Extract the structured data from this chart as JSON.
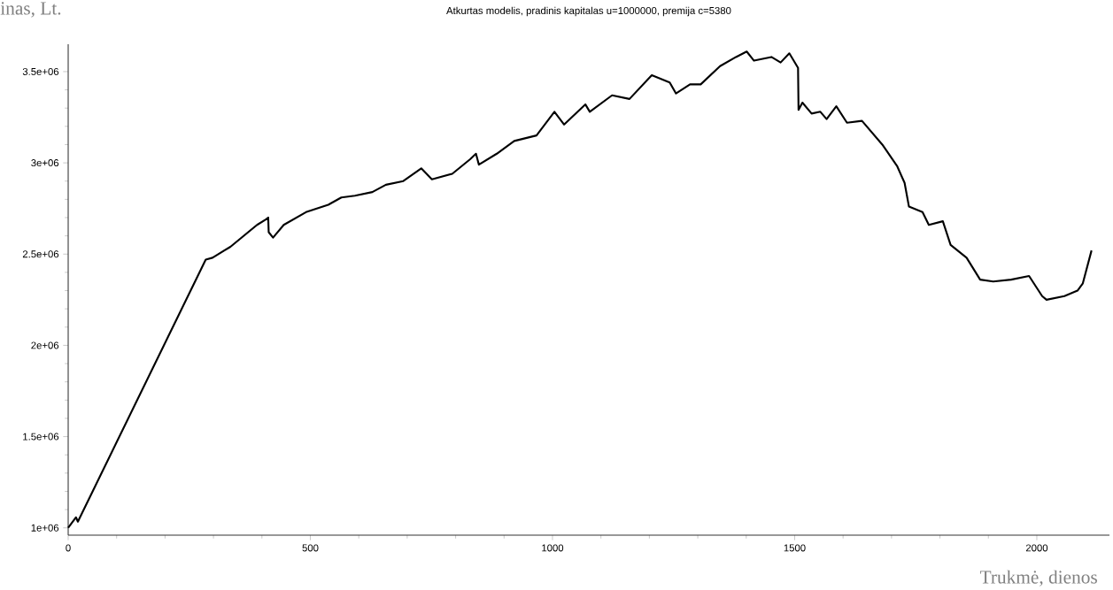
{
  "chart_data": {
    "type": "line",
    "title": "Atkurtas modelis, pradinis kapitalas u=1000000, premija c=5380",
    "xlabel": "Trukmė, dienos",
    "ylabel": "inas, Lt.",
    "xlim": [
      0,
      2150
    ],
    "ylim": [
      960000,
      3650000
    ],
    "xticks": [
      0,
      500,
      1000,
      1500,
      2000
    ],
    "yticks": [
      {
        "value": 1000000,
        "label": "1e+06"
      },
      {
        "value": 1500000,
        "label": "1.5e+06"
      },
      {
        "value": 2000000,
        "label": "2e+06"
      },
      {
        "value": 2500000,
        "label": "2.5e+06"
      },
      {
        "value": 3000000,
        "label": "3e+06"
      },
      {
        "value": 3500000,
        "label": "3.5e+06"
      }
    ],
    "line_style": "solid",
    "series": [
      {
        "color": "#000000",
        "x": [
          0,
          16,
          20,
          284,
          298,
          335,
          390,
          408,
          413,
          414,
          423,
          445,
          491,
          537,
          564,
          592,
          628,
          656,
          692,
          729,
          751,
          793,
          830,
          842,
          848,
          885,
          921,
          967,
          1004,
          1024,
          1068,
          1077,
          1123,
          1159,
          1205,
          1242,
          1255,
          1284,
          1306,
          1346,
          1379,
          1401,
          1416,
          1452,
          1471,
          1489,
          1507,
          1508,
          1516,
          1535,
          1553,
          1566,
          1586,
          1608,
          1639,
          1681,
          1712,
          1727,
          1736,
          1764,
          1777,
          1806,
          1822,
          1855,
          1883,
          1910,
          1947,
          1984,
          2011,
          2020,
          2057,
          2084,
          2095,
          2113
        ],
        "values": [
          1000000,
          1058000,
          1034000,
          2470000,
          2480000,
          2540000,
          2660000,
          2690000,
          2700000,
          2620000,
          2590000,
          2660000,
          2730000,
          2770000,
          2810000,
          2820000,
          2840000,
          2880000,
          2900000,
          2970000,
          2910000,
          2940000,
          3020000,
          3050000,
          2990000,
          3050000,
          3120000,
          3150000,
          3280000,
          3210000,
          3320000,
          3280000,
          3370000,
          3350000,
          3480000,
          3440000,
          3380000,
          3430000,
          3430000,
          3530000,
          3580000,
          3610000,
          3560000,
          3580000,
          3550000,
          3600000,
          3520000,
          3290000,
          3330000,
          3270000,
          3280000,
          3240000,
          3310000,
          3220000,
          3230000,
          3100000,
          2980000,
          2890000,
          2760000,
          2730000,
          2660000,
          2680000,
          2550000,
          2480000,
          2360000,
          2350000,
          2360000,
          2380000,
          2270000,
          2250000,
          2270000,
          2300000,
          2340000,
          2520000
        ]
      }
    ]
  }
}
